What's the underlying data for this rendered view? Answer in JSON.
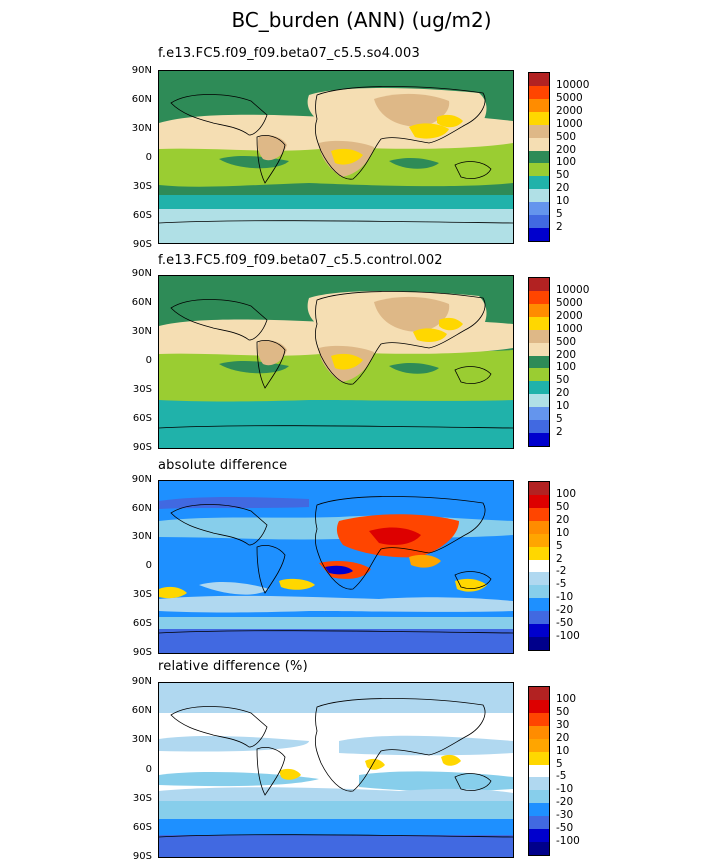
{
  "title": "BC_burden (ANN) (ug/m2)",
  "lat_labels": [
    "90N",
    "60N",
    "30N",
    "0",
    "30S",
    "60S",
    "90S"
  ],
  "colors": {
    "burden": [
      "#b22222",
      "#ff4500",
      "#ff8c00",
      "#ffd700",
      "#deb887",
      "#f5deb3",
      "#2e8b57",
      "#9acd32",
      "#20b2aa",
      "#b0e0e6",
      "#6495ed",
      "#4169e1",
      "#0000cd"
    ],
    "absdiff": [
      "#b22222",
      "#dd0000",
      "#ff4500",
      "#ff8c00",
      "#ffa500",
      "#ffd700",
      "#ffffff",
      "#b0d8f0",
      "#87ceeb",
      "#1e90ff",
      "#4169e1",
      "#0000cd",
      "#00008b"
    ],
    "reldiff": [
      "#b22222",
      "#dd0000",
      "#ff4500",
      "#ff8c00",
      "#ffa500",
      "#ffd700",
      "#ffffff",
      "#b0d8f0",
      "#87ceeb",
      "#1e90ff",
      "#4169e1",
      "#0000cd",
      "#00008b"
    ]
  },
  "panels": [
    {
      "id": "p1",
      "title": "f.e13.FC5.f09_f09.beta07_c5.5.so4.003",
      "levels": [
        "10000",
        "5000",
        "2000",
        "1000",
        "500",
        "200",
        "100",
        "50",
        "20",
        "10",
        "5",
        "2"
      ]
    },
    {
      "id": "p2",
      "title": "f.e13.FC5.f09_f09.beta07_c5.5.control.002",
      "levels": [
        "10000",
        "5000",
        "2000",
        "1000",
        "500",
        "200",
        "100",
        "50",
        "20",
        "10",
        "5",
        "2"
      ]
    },
    {
      "id": "p3",
      "title": "absolute difference",
      "levels": [
        "100",
        "50",
        "20",
        "10",
        "5",
        "2",
        "-2",
        "-5",
        "-10",
        "-20",
        "-50",
        "-100"
      ]
    },
    {
      "id": "p4",
      "title": "relative difference (%)",
      "levels": [
        "100",
        "50",
        "30",
        "20",
        "10",
        "5",
        "-5",
        "-10",
        "-20",
        "-30",
        "-50",
        "-100"
      ]
    }
  ]
}
